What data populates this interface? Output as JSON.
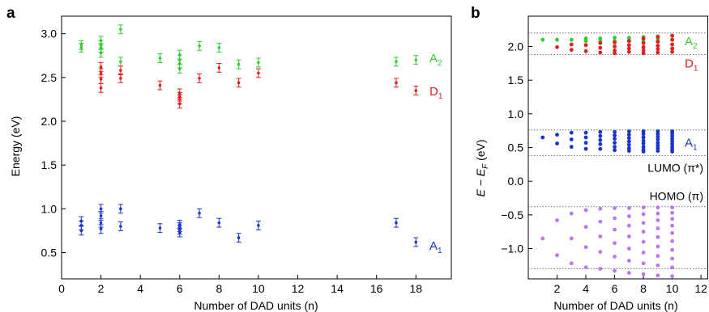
{
  "chart_data": [
    {
      "panel_label": "a",
      "type": "scatter",
      "xlabel": "Number of DAD units (n)",
      "ylabel": "Energy (eV)",
      "xlim": [
        0,
        19.8
      ],
      "ylim": [
        0.2,
        3.2
      ],
      "xticks": [
        0,
        2,
        4,
        6,
        8,
        10,
        12,
        14,
        16,
        18
      ],
      "yticks": [
        0.5,
        1.0,
        1.5,
        2.0,
        2.5,
        3.0
      ],
      "grid": false,
      "series": [
        {
          "name": "A2",
          "name_main": "A",
          "name_sub": "2",
          "color": "#33cc33",
          "error": 0.05,
          "points": [
            [
              1,
              2.87
            ],
            [
              1,
              2.84
            ],
            [
              2,
              2.92
            ],
            [
              2,
              2.87
            ],
            [
              2,
              2.84
            ],
            [
              2,
              2.78
            ],
            [
              3,
              3.05
            ],
            [
              3,
              2.68
            ],
            [
              5,
              2.72
            ],
            [
              6,
              2.76
            ],
            [
              6,
              2.7
            ],
            [
              6,
              2.66
            ],
            [
              6,
              2.6
            ],
            [
              7,
              2.86
            ],
            [
              8,
              2.84
            ],
            [
              9,
              2.65
            ],
            [
              10,
              2.67
            ],
            [
              17,
              2.68
            ],
            [
              18,
              2.7
            ]
          ]
        },
        {
          "name": "D1",
          "name_main": "D",
          "name_sub": "1",
          "color": "#e02020",
          "error": 0.05,
          "points": [
            [
              2,
              2.62
            ],
            [
              2,
              2.55
            ],
            [
              2,
              2.48
            ],
            [
              2,
              2.38
            ],
            [
              3,
              2.58
            ],
            [
              3,
              2.49
            ],
            [
              5,
              2.41
            ],
            [
              6,
              2.32
            ],
            [
              6,
              2.28
            ],
            [
              6,
              2.25
            ],
            [
              6,
              2.2
            ],
            [
              7,
              2.49
            ],
            [
              8,
              2.61
            ],
            [
              9,
              2.44
            ],
            [
              10,
              2.55
            ],
            [
              17,
              2.44
            ],
            [
              18,
              2.35
            ]
          ]
        },
        {
          "name": "A1",
          "name_main": "A",
          "name_sub": "1",
          "color": "#1a33cc",
          "error": 0.05,
          "points": [
            [
              1,
              0.86
            ],
            [
              1,
              0.81
            ],
            [
              1,
              0.75
            ],
            [
              2,
              1.0
            ],
            [
              2,
              0.92
            ],
            [
              2,
              0.84
            ],
            [
              2,
              0.77
            ],
            [
              3,
              1.0
            ],
            [
              3,
              0.8
            ],
            [
              5,
              0.78
            ],
            [
              6,
              0.82
            ],
            [
              6,
              0.79
            ],
            [
              6,
              0.76
            ],
            [
              6,
              0.73
            ],
            [
              7,
              0.95
            ],
            [
              8,
              0.84
            ],
            [
              9,
              0.67
            ],
            [
              10,
              0.81
            ],
            [
              17,
              0.84
            ],
            [
              18,
              0.62
            ]
          ]
        }
      ]
    },
    {
      "panel_label": "b",
      "type": "scatter",
      "xlabel": "Number of DAD units (n)",
      "ylabel_main": "E − E",
      "ylabel_sub": "F",
      "ylabel_unit": " (eV)",
      "xlim": [
        0,
        12.5
      ],
      "ylim": [
        -1.45,
        2.45
      ],
      "xticks": [
        2,
        4,
        6,
        8,
        10,
        12
      ],
      "yticks": [
        -1.0,
        -0.5,
        0.0,
        0.5,
        1.0,
        1.5,
        2.0
      ],
      "grid": false,
      "reference_lines": [
        2.2,
        1.88,
        0.76,
        0.38,
        -0.38,
        -1.3
      ],
      "annotations": [
        {
          "text_main": "A",
          "text_sub": "2",
          "color": "#33cc33",
          "anchor_y": 2.08
        },
        {
          "text_main": "D",
          "text_sub": "1",
          "color": "#e02020",
          "anchor_y": 1.75
        },
        {
          "text_main": "A",
          "text_sub": "1",
          "color": "#1a33cc",
          "anchor_y": 0.57
        },
        {
          "text": "LUMO (π*)",
          "color": "#000000",
          "anchor_y": 0.2
        },
        {
          "text": "HOMO (π)",
          "color": "#000000",
          "anchor_y": -0.22
        }
      ],
      "series": [
        {
          "name": "A2",
          "color": "#33cc33",
          "points": [
            [
              1,
              2.1
            ],
            [
              2,
              2.1
            ],
            [
              3,
              2.1
            ],
            [
              4,
              2.12
            ],
            [
              4,
              2.08
            ],
            [
              5,
              2.12
            ],
            [
              5,
              2.08
            ],
            [
              6,
              2.13
            ],
            [
              6,
              2.08
            ],
            [
              7,
              2.13
            ],
            [
              7,
              2.09
            ],
            [
              8,
              2.14
            ],
            [
              8,
              2.09
            ],
            [
              9,
              2.15
            ],
            [
              9,
              2.1
            ],
            [
              10,
              2.16
            ],
            [
              10,
              2.1
            ]
          ]
        },
        {
          "name": "D1",
          "color": "#e02020",
          "points": [
            [
              2,
              1.99
            ],
            [
              3,
              2.03
            ],
            [
              3,
              1.95
            ],
            [
              4,
              2.02
            ],
            [
              4,
              1.93
            ],
            [
              5,
              2.05
            ],
            [
              5,
              1.98
            ],
            [
              5,
              1.91
            ],
            [
              6,
              2.06
            ],
            [
              6,
              2.0
            ],
            [
              6,
              1.94
            ],
            [
              6,
              1.9
            ],
            [
              7,
              2.08
            ],
            [
              7,
              2.02
            ],
            [
              7,
              1.97
            ],
            [
              7,
              1.92
            ],
            [
              8,
              2.12
            ],
            [
              8,
              2.05
            ],
            [
              8,
              1.99
            ],
            [
              8,
              1.94
            ],
            [
              8,
              1.9
            ],
            [
              9,
              2.14
            ],
            [
              9,
              2.07
            ],
            [
              9,
              2.01
            ],
            [
              9,
              1.96
            ],
            [
              9,
              1.91
            ],
            [
              10,
              2.16
            ],
            [
              10,
              2.1
            ],
            [
              10,
              2.03
            ],
            [
              10,
              1.97
            ],
            [
              10,
              1.92
            ]
          ]
        },
        {
          "name": "A1",
          "color": "#1a33cc",
          "points": [
            [
              1,
              0.65
            ],
            [
              2,
              0.69
            ],
            [
              2,
              0.56
            ],
            [
              3,
              0.72
            ],
            [
              3,
              0.62
            ],
            [
              3,
              0.51
            ],
            [
              4,
              0.72
            ],
            [
              4,
              0.65
            ],
            [
              4,
              0.57
            ],
            [
              4,
              0.48
            ],
            [
              5,
              0.73
            ],
            [
              5,
              0.67
            ],
            [
              5,
              0.61
            ],
            [
              5,
              0.55
            ],
            [
              5,
              0.48
            ],
            [
              6,
              0.73
            ],
            [
              6,
              0.68
            ],
            [
              6,
              0.63
            ],
            [
              6,
              0.57
            ],
            [
              6,
              0.51
            ],
            [
              6,
              0.46
            ],
            [
              7,
              0.74
            ],
            [
              7,
              0.69
            ],
            [
              7,
              0.64
            ],
            [
              7,
              0.59
            ],
            [
              7,
              0.54
            ],
            [
              7,
              0.49
            ],
            [
              7,
              0.45
            ],
            [
              8,
              0.74
            ],
            [
              8,
              0.7
            ],
            [
              8,
              0.65
            ],
            [
              8,
              0.6
            ],
            [
              8,
              0.56
            ],
            [
              8,
              0.51
            ],
            [
              8,
              0.47
            ],
            [
              8,
              0.44
            ],
            [
              9,
              0.74
            ],
            [
              9,
              0.7
            ],
            [
              9,
              0.66
            ],
            [
              9,
              0.62
            ],
            [
              9,
              0.57
            ],
            [
              9,
              0.53
            ],
            [
              9,
              0.49
            ],
            [
              9,
              0.45
            ],
            [
              10,
              0.74
            ],
            [
              10,
              0.71
            ],
            [
              10,
              0.67
            ],
            [
              10,
              0.63
            ],
            [
              10,
              0.59
            ],
            [
              10,
              0.55
            ],
            [
              10,
              0.51
            ],
            [
              10,
              0.47
            ],
            [
              10,
              0.44
            ]
          ]
        },
        {
          "name": "HOMO",
          "color": "#bb77ee",
          "points": [
            [
              1,
              -0.85
            ],
            [
              2,
              -0.58
            ],
            [
              2,
              -1.1
            ],
            [
              3,
              -0.48
            ],
            [
              3,
              -0.85
            ],
            [
              3,
              -1.22
            ],
            [
              4,
              -0.43
            ],
            [
              4,
              -0.68
            ],
            [
              4,
              -0.98
            ],
            [
              4,
              -1.28
            ],
            [
              5,
              -0.41
            ],
            [
              5,
              -0.6
            ],
            [
              5,
              -0.82
            ],
            [
              5,
              -1.05
            ],
            [
              5,
              -1.3
            ],
            [
              6,
              -0.4
            ],
            [
              6,
              -0.55
            ],
            [
              6,
              -0.72
            ],
            [
              6,
              -0.92
            ],
            [
              6,
              -1.12
            ],
            [
              6,
              -1.33
            ],
            [
              7,
              -0.4
            ],
            [
              7,
              -0.52
            ],
            [
              7,
              -0.66
            ],
            [
              7,
              -0.82
            ],
            [
              7,
              -1.0
            ],
            [
              7,
              -1.18
            ],
            [
              7,
              -1.36
            ],
            [
              8,
              -0.39
            ],
            [
              8,
              -0.49
            ],
            [
              8,
              -0.62
            ],
            [
              8,
              -0.75
            ],
            [
              8,
              -0.9
            ],
            [
              8,
              -1.06
            ],
            [
              8,
              -1.22
            ],
            [
              8,
              -1.38
            ],
            [
              9,
              -0.39
            ],
            [
              9,
              -0.48
            ],
            [
              9,
              -0.58
            ],
            [
              9,
              -0.7
            ],
            [
              9,
              -0.83
            ],
            [
              9,
              -0.97
            ],
            [
              9,
              -1.11
            ],
            [
              9,
              -1.25
            ],
            [
              9,
              -1.4
            ],
            [
              10,
              -0.39
            ],
            [
              10,
              -0.47
            ],
            [
              10,
              -0.56
            ],
            [
              10,
              -0.66
            ],
            [
              10,
              -0.77
            ],
            [
              10,
              -0.89
            ],
            [
              10,
              -1.02
            ],
            [
              10,
              -1.15
            ],
            [
              10,
              -1.28
            ],
            [
              10,
              -1.41
            ]
          ]
        }
      ]
    }
  ]
}
